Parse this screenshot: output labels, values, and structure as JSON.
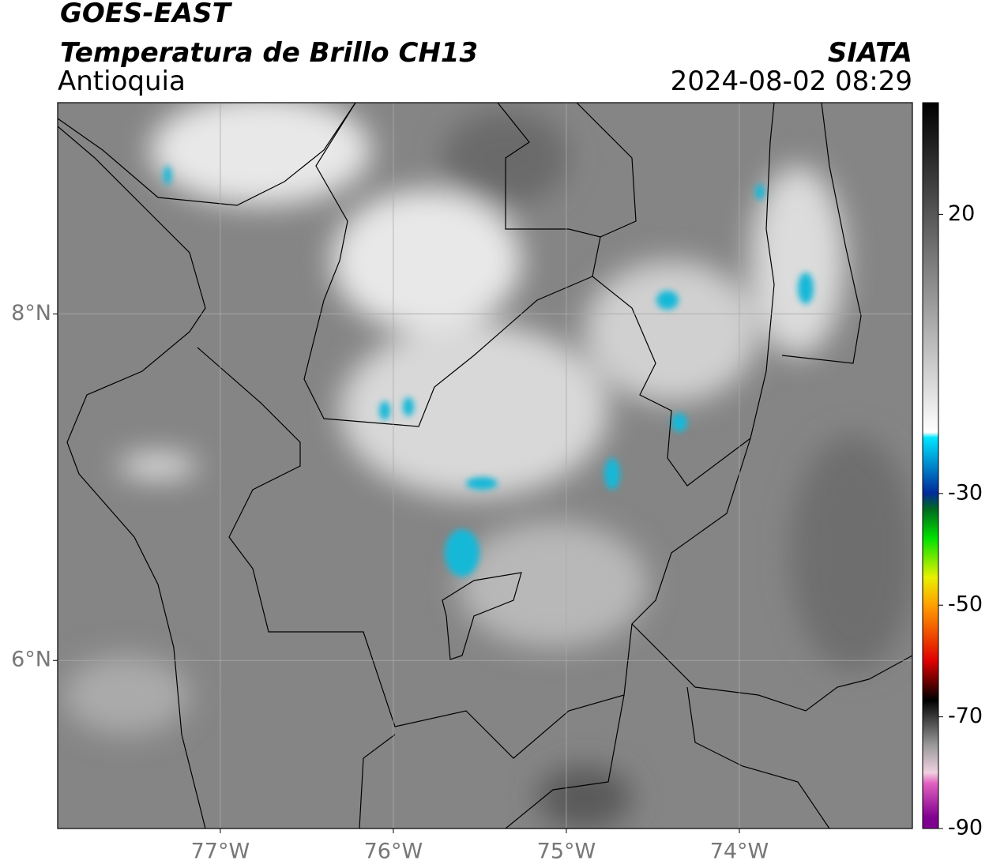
{
  "header": {
    "title": "GOES-EAST",
    "subtitle": "Temperatura de Brillo CH13",
    "region": "Antioquia",
    "source": "SIATA",
    "datetime": "2024-08-02 08:29"
  },
  "map": {
    "lon_lim": [
      -77.94,
      -73.0
    ],
    "lat_lim": [
      5.03,
      9.22
    ],
    "lon_ticks": [
      {
        "value": -77,
        "label": "77°W"
      },
      {
        "value": -76,
        "label": "76°W"
      },
      {
        "value": -75,
        "label": "75°W"
      },
      {
        "value": -74,
        "label": "74°W"
      }
    ],
    "lat_ticks": [
      {
        "value": 8,
        "label": "8°N"
      },
      {
        "value": 6,
        "label": "6°N"
      }
    ]
  },
  "colorbar": {
    "lim": [
      -90,
      40
    ],
    "ticks": [
      20,
      -30,
      -50,
      -70,
      -90
    ]
  }
}
